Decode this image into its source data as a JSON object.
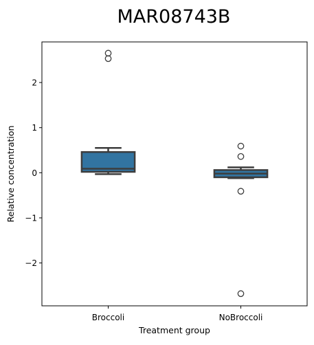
{
  "chart_data": {
    "type": "box",
    "title": "MAR08743B",
    "xlabel": "Treatment group",
    "ylabel": "Relative concentration",
    "categories": [
      "Broccoli",
      "NoBroccoli"
    ],
    "ylim": [
      -2.95,
      2.9
    ],
    "yticks": [
      -2,
      -1,
      0,
      1,
      2
    ],
    "ytick_labels": [
      "−2",
      "−1",
      "0",
      "1",
      "2"
    ],
    "grid": false,
    "box_color": "#3274a1",
    "edge_color": "#3d3d3d",
    "boxes": [
      {
        "category": "Broccoli",
        "whisker_low": -0.03,
        "q1": 0.02,
        "median": 0.09,
        "q3": 0.46,
        "whisker_high": 0.55,
        "outliers": [
          2.65,
          2.53
        ]
      },
      {
        "category": "NoBroccoli",
        "whisker_low": -0.12,
        "q1": -0.1,
        "median": -0.02,
        "q3": 0.06,
        "whisker_high": 0.12,
        "outliers": [
          0.59,
          0.36,
          -0.41,
          -2.68
        ]
      }
    ]
  }
}
